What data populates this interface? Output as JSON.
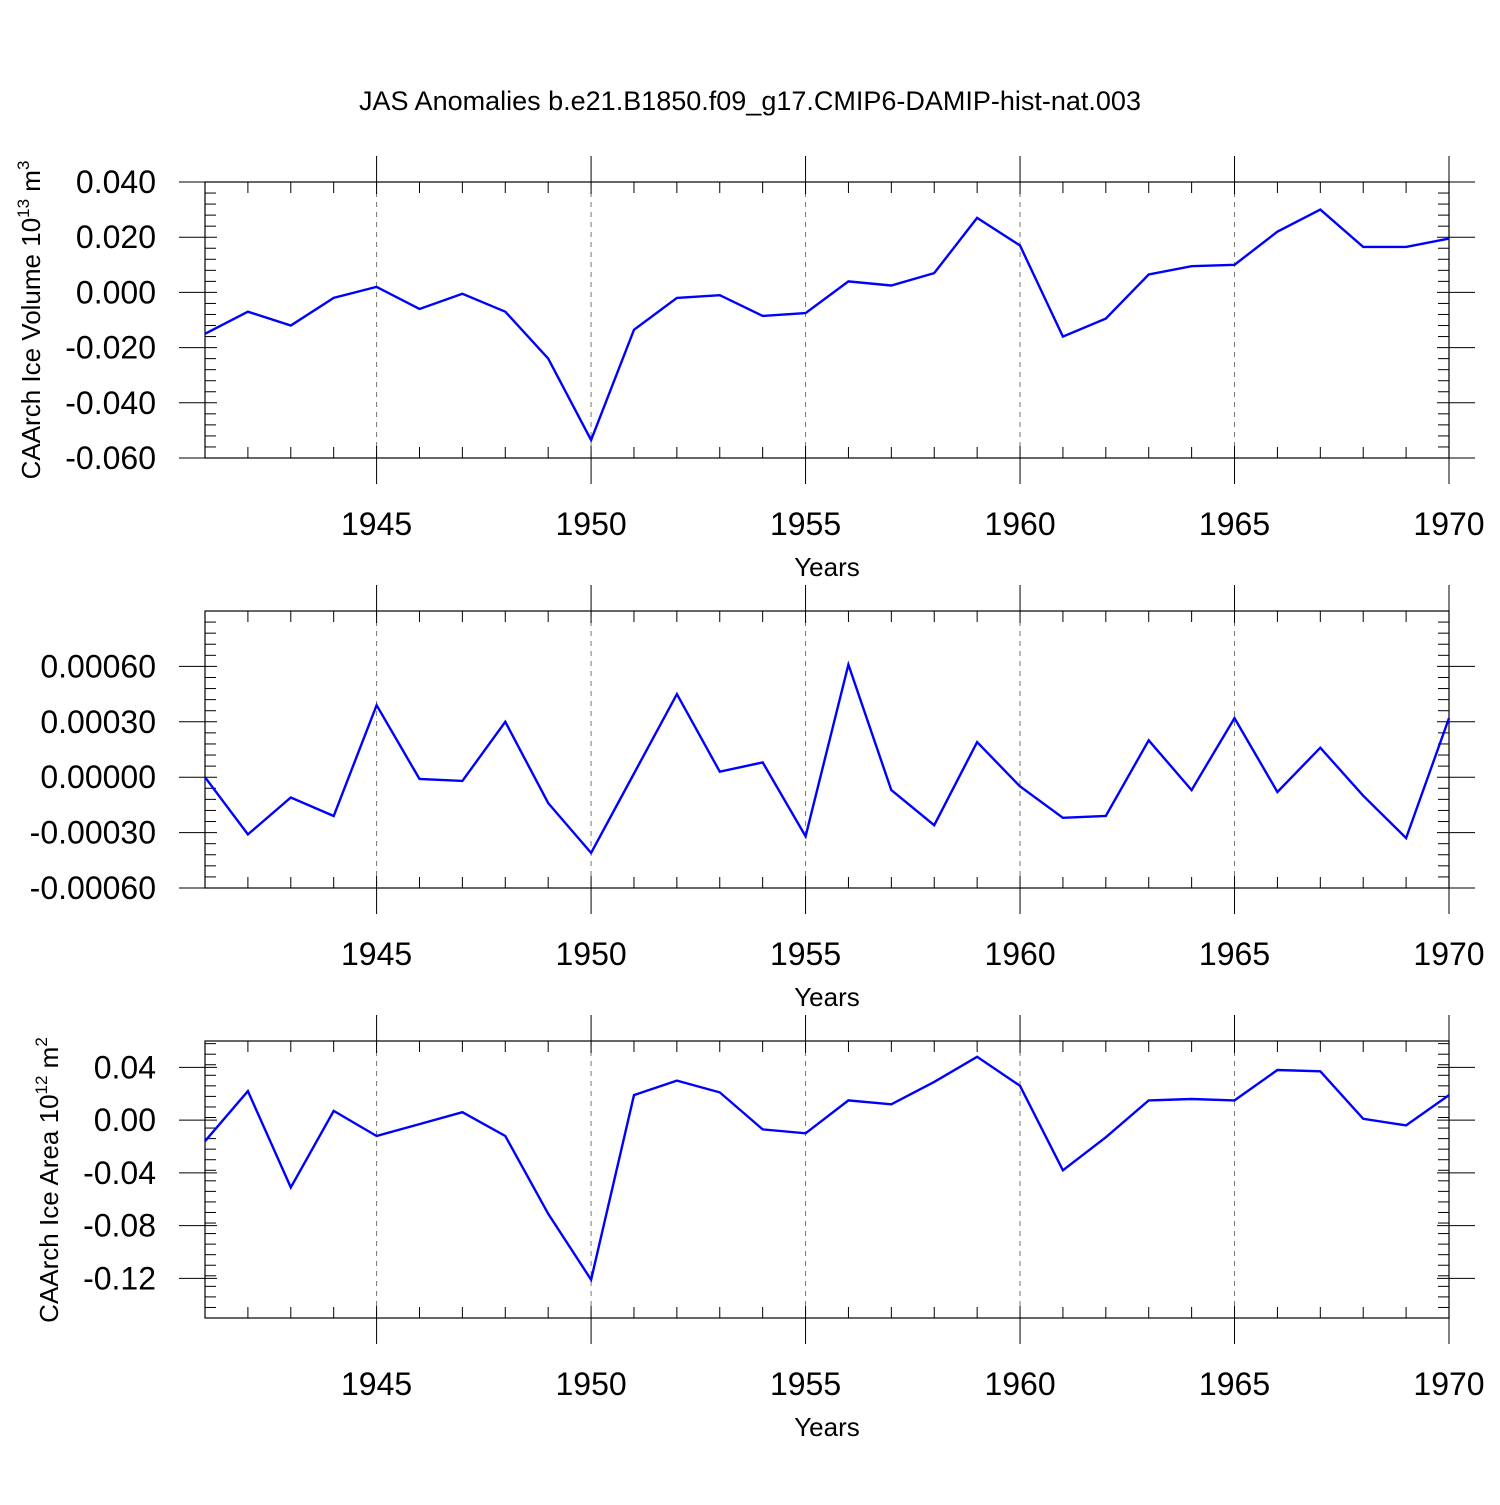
{
  "page": {
    "title": "JAS Anomalies b.e21.B1850.f09_g17.CMIP6-DAMIP-hist-nat.003"
  },
  "chart_data": [
    {
      "type": "line",
      "xlabel": "Years",
      "ylabel": "CAArch Ice Volume 10",
      "ylabel_exponent": "13",
      "ylabel_unit": " m",
      "ylabel_unit_exponent": "3",
      "xlim": [
        1941,
        1970
      ],
      "ylim": [
        -0.06,
        0.04
      ],
      "yticks": [
        "0.040",
        "0.020",
        "0.000",
        "-0.020",
        "-0.040",
        "-0.060"
      ],
      "ytick_values": [
        0.04,
        0.02,
        0.0,
        -0.02,
        -0.04,
        -0.06
      ],
      "xticks": [
        "1945",
        "1950",
        "1955",
        "1960",
        "1965",
        "1970"
      ],
      "xtick_values": [
        1945,
        1950,
        1955,
        1960,
        1965,
        1970
      ],
      "grid": "vertical-dashed-at-major-x",
      "line_color": "#0000ff",
      "x": [
        1941,
        1942,
        1943,
        1944,
        1945,
        1946,
        1947,
        1948,
        1949,
        1950,
        1951,
        1952,
        1953,
        1954,
        1955,
        1956,
        1957,
        1958,
        1959,
        1960,
        1961,
        1962,
        1963,
        1964,
        1965,
        1966,
        1967,
        1968,
        1969,
        1970
      ],
      "values": [
        -0.015,
        -0.007,
        -0.012,
        -0.002,
        0.002,
        -0.006,
        -0.0005,
        -0.007,
        -0.024,
        -0.0535,
        -0.0135,
        -0.002,
        -0.001,
        -0.0085,
        -0.0075,
        0.004,
        0.0025,
        0.007,
        0.027,
        0.017,
        -0.016,
        -0.0095,
        0.0065,
        0.0095,
        0.01,
        0.022,
        0.03,
        0.0165,
        0.0165,
        0.0195
      ]
    },
    {
      "type": "line",
      "xlabel": "Years",
      "ylabel": "",
      "xlim": [
        1941,
        1970
      ],
      "ylim": [
        -0.0006,
        0.0009
      ],
      "yticks": [
        "0.00060",
        "0.00030",
        "0.00000",
        "-0.00030",
        "-0.00060"
      ],
      "ytick_values": [
        0.0006,
        0.0003,
        0.0,
        -0.0003,
        -0.0006
      ],
      "xticks": [
        "1945",
        "1950",
        "1955",
        "1960",
        "1965",
        "1970"
      ],
      "xtick_values": [
        1945,
        1950,
        1955,
        1960,
        1965,
        1970
      ],
      "grid": "vertical-dashed-at-major-x",
      "line_color": "#0000ff",
      "x": [
        1941,
        1942,
        1943,
        1944,
        1945,
        1946,
        1947,
        1948,
        1949,
        1950,
        1951,
        1952,
        1953,
        1954,
        1955,
        1956,
        1957,
        1958,
        1959,
        1960,
        1961,
        1962,
        1963,
        1964,
        1965,
        1966,
        1967,
        1968,
        1969,
        1970
      ],
      "values": [
        0.0,
        -0.00031,
        -0.00011,
        -0.00021,
        0.00039,
        -1e-05,
        -2e-05,
        0.0003,
        -0.00014,
        -0.00041,
        2e-05,
        0.00045,
        3e-05,
        8e-05,
        -0.00032,
        0.00061,
        -7e-05,
        -0.00026,
        0.00019,
        -5e-05,
        -0.00022,
        -0.00021,
        0.0002,
        -7e-05,
        0.00032,
        -8e-05,
        0.00016,
        -0.0001,
        -0.00033,
        0.00032
      ]
    },
    {
      "type": "line",
      "xlabel": "Years",
      "ylabel": "CAArch Ice Area 10",
      "ylabel_exponent": "12",
      "ylabel_unit": " m",
      "ylabel_unit_exponent": "2",
      "xlim": [
        1941,
        1970
      ],
      "ylim": [
        -0.15,
        0.06
      ],
      "yticks": [
        "0.04",
        "0.00",
        "-0.04",
        "-0.08",
        "-0.12"
      ],
      "ytick_values": [
        0.04,
        0.0,
        -0.04,
        -0.08,
        -0.12
      ],
      "xticks": [
        "1945",
        "1950",
        "1955",
        "1960",
        "1965",
        "1970"
      ],
      "xtick_values": [
        1945,
        1950,
        1955,
        1960,
        1965,
        1970
      ],
      "grid": "vertical-dashed-at-major-x",
      "line_color": "#0000ff",
      "x": [
        1941,
        1942,
        1943,
        1944,
        1945,
        1946,
        1947,
        1948,
        1949,
        1950,
        1951,
        1952,
        1953,
        1954,
        1955,
        1956,
        1957,
        1958,
        1959,
        1960,
        1961,
        1962,
        1963,
        1964,
        1965,
        1966,
        1967,
        1968,
        1969,
        1970
      ],
      "values": [
        -0.016,
        0.022,
        -0.051,
        0.007,
        -0.012,
        -0.003,
        0.006,
        -0.012,
        -0.071,
        -0.121,
        0.019,
        0.03,
        0.021,
        -0.007,
        -0.01,
        0.015,
        0.012,
        0.029,
        0.048,
        0.026,
        -0.038,
        -0.013,
        0.015,
        0.016,
        0.015,
        0.038,
        0.037,
        0.001,
        -0.004,
        0.019
      ]
    }
  ]
}
